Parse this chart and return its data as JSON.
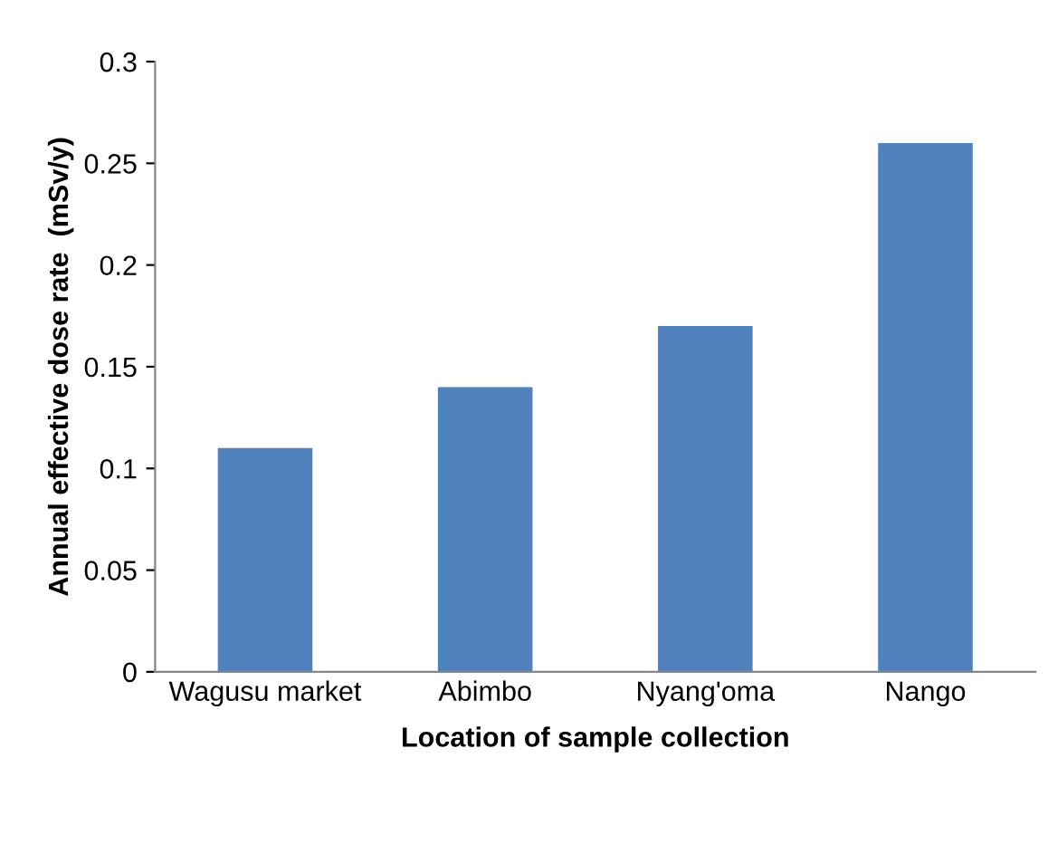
{
  "chart_data": {
    "type": "bar",
    "xlabel": "Location of sample collection",
    "ylabel": "Annual effective dose rate  (mSv/y)",
    "categories": [
      "Wagusu market",
      "Abimbo",
      "Nyang'oma",
      "Nango"
    ],
    "values": [
      0.11,
      0.14,
      0.17,
      0.26
    ],
    "color": "#4f81bd",
    "ylim": [
      0,
      0.3
    ],
    "yticks": [
      {
        "value": 0,
        "label": "0"
      },
      0.05,
      0.1,
      0.15,
      0.2,
      0.25,
      0.3
    ],
    "grid": false
  }
}
